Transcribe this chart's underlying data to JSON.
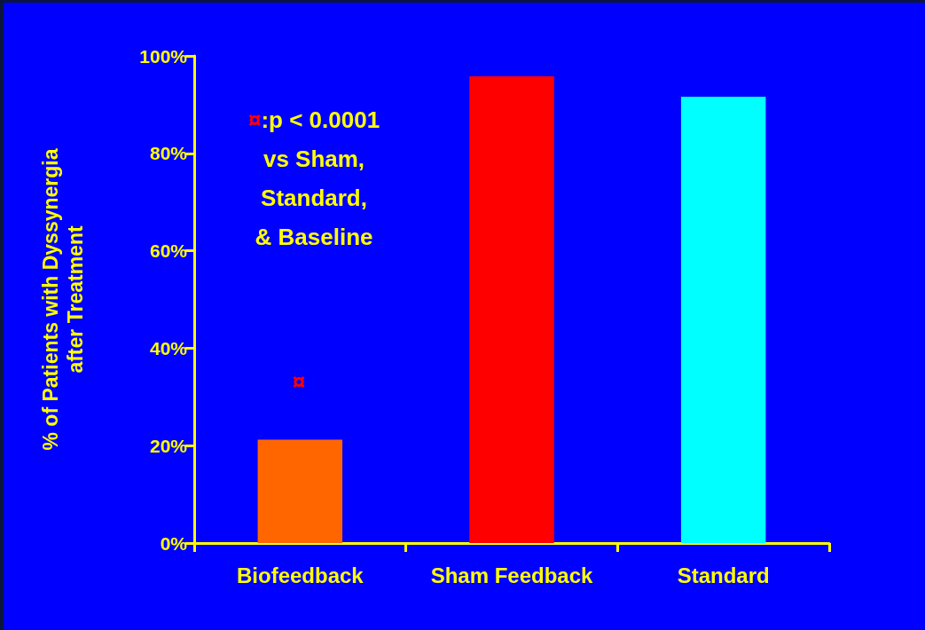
{
  "chart_data": {
    "type": "bar",
    "ylabel": "% of Patients with Dyssynergia\nafter Treatment",
    "categories": [
      "Biofeedback",
      "Sham Feedback",
      "Standard"
    ],
    "values": [
      21.2,
      95.8,
      91.6
    ],
    "colors": [
      "#ff6600",
      "#ff0000",
      "#00ffff"
    ],
    "ylim": [
      0,
      100
    ],
    "yticks": [
      {
        "value": 0,
        "label": "0%"
      },
      {
        "value": 20,
        "label": "20%"
      },
      {
        "value": 40,
        "label": "40%"
      },
      {
        "value": 60,
        "label": "60%"
      },
      {
        "value": 80,
        "label": "80%"
      },
      {
        "value": 100,
        "label": "100%"
      }
    ],
    "grid": false,
    "annotations": [
      "¤:p < 0.0001\nvs Sham,\nStandard,\n& Baseline",
      "¤"
    ]
  }
}
